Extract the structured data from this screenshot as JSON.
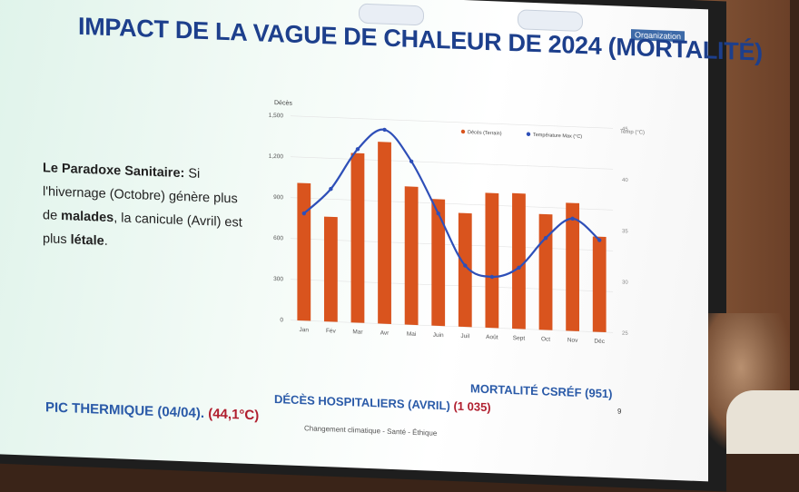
{
  "slide": {
    "title": "IMPACT DE LA VAGUE DE CHALEUR DE 2024 (MORTALITÉ)",
    "org_tag": "Organization",
    "paradox": {
      "bold_prefix": "Le Paradoxe Sanitaire:",
      "text_1": " Si l'hivernage (Octobre) génère plus de ",
      "bold_1": "malades",
      "text_2": ", la canicule (Avril) est plus ",
      "bold_2": "létale",
      "text_3": "."
    },
    "stats": {
      "pic_label": "PIC THERMIQUE (04/04).",
      "pic_value": "(44,1°C)",
      "deces_label": "DÉCÈS HOSPITALIERS (AVRIL)",
      "deces_value": "(1 035)",
      "csref": "MORTALITÉ CSRÉF (951)"
    },
    "page_number": "9",
    "footer": "Changement climatique - Santé - Éthique"
  },
  "chart_data": {
    "type": "bar",
    "ylabel": "Décès",
    "y2label": "Temp (°C)",
    "ylim": [
      0,
      1500
    ],
    "yticks": [
      "0",
      "300",
      "600",
      "900",
      "1,200",
      "1,500"
    ],
    "y2lim": [
      25,
      45
    ],
    "y2ticks": [
      "25",
      "30",
      "35",
      "40",
      "45"
    ],
    "categories": [
      "Jan",
      "Fév",
      "Mar",
      "Avr",
      "Mai",
      "Juin",
      "Juil",
      "Août",
      "Sept",
      "Oct",
      "Nov",
      "Déc"
    ],
    "series": [
      {
        "name": "Décès (Terrain)",
        "type": "bar",
        "color": "#d9541e",
        "values": [
          1010,
          770,
          1245,
          1335,
          1015,
          930,
          835,
          990,
          995,
          850,
          940,
          700
        ]
      },
      {
        "name": "Température Max (°C)",
        "type": "line",
        "color": "#2e4fb8",
        "axis": "y2",
        "values": [
          35.5,
          38,
          42,
          44,
          41,
          36,
          31,
          30,
          31,
          34,
          36,
          34
        ]
      }
    ],
    "legend": "top-right"
  }
}
